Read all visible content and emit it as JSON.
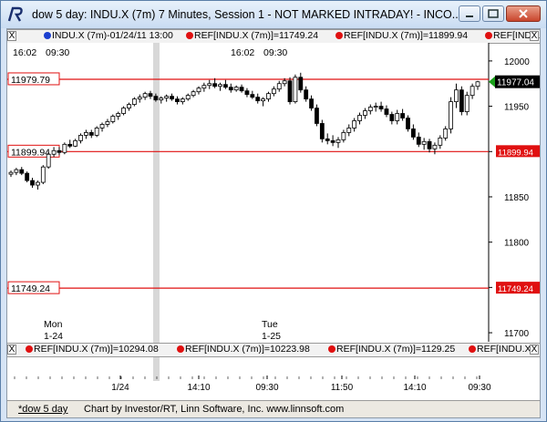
{
  "window": {
    "title": "dow 5 day: INDU.X (7m) 7 Minutes, Session 1 - NOT MARKED INTRADAY! - INCO..."
  },
  "top_legend": {
    "items": [
      {
        "text": "INDU.X (7m)-01/24/11 13:00",
        "dot": "blue"
      },
      {
        "text": "REF[INDU.X (7m)]=11749.24",
        "dot": "red"
      },
      {
        "text": "REF[INDU.X (7m)]=11899.94",
        "dot": "red"
      },
      {
        "text": "REF[INDU.X",
        "dot": "red"
      }
    ],
    "close_label": "X"
  },
  "bottom_legend": {
    "items": [
      {
        "text": "REF[INDU.X (7m)]=10294.08",
        "dot": "red"
      },
      {
        "text": "REF[INDU.X (7m)]=10223.98",
        "dot": "red"
      },
      {
        "text": "REF[INDU.X (7m)]=1129.25",
        "dot": "red"
      },
      {
        "text": "REF[INDU.X",
        "dot": "red"
      }
    ],
    "close_label": "X"
  },
  "session_labels": [
    {
      "time": "16:02",
      "open": "09:30"
    },
    {
      "time": "16:02",
      "open": "09:30"
    }
  ],
  "day_labels": [
    {
      "weekday": "Mon",
      "date": "1-24"
    },
    {
      "weekday": "Tue",
      "date": "1-25"
    }
  ],
  "time_ticks": [
    "1/24",
    "14:10",
    "09:30",
    "11:50",
    "14:10",
    "09:30"
  ],
  "status": {
    "tab": "*dow 5 day",
    "text": "Chart by Investor/RT, Linn Software, Inc. www.linnsoft.com"
  },
  "colors": {
    "up_candle": "#ffffff",
    "down_candle": "#000000",
    "ref_line": "#e01010",
    "last_price_bg": "#000000",
    "session_shade": "#d8d8d8"
  },
  "chart_data": {
    "type": "candlestick",
    "title": "dow 5 day: INDU.X (7m) 7 Minutes",
    "ylim": [
      11690,
      12020
    ],
    "y_ticks": [
      12000,
      11950,
      11900,
      11850,
      11800,
      11750,
      11700
    ],
    "reference_lines": [
      {
        "value": 11979.79,
        "label": "11979.79",
        "right_label": ""
      },
      {
        "value": 11899.94,
        "label": "11899.94",
        "right_label": "11899.94"
      },
      {
        "value": 11749.24,
        "label": "11749.24",
        "right_label": "11749.24"
      }
    ],
    "last_price": 11977.04,
    "last_price_label": "11977.04",
    "candles": [
      [
        11875,
        11879,
        11872,
        11877
      ],
      [
        11877,
        11882,
        11874,
        11880
      ],
      [
        11880,
        11883,
        11874,
        11876
      ],
      [
        11876,
        11878,
        11866,
        11868
      ],
      [
        11868,
        11871,
        11860,
        11863
      ],
      [
        11863,
        11868,
        11858,
        11866
      ],
      [
        11866,
        11885,
        11864,
        11883
      ],
      [
        11883,
        11900,
        11881,
        11897
      ],
      [
        11897,
        11905,
        11894,
        11901
      ],
      [
        11901,
        11905,
        11896,
        11899
      ],
      [
        11899,
        11910,
        11897,
        11908
      ],
      [
        11908,
        11913,
        11904,
        11906
      ],
      [
        11906,
        11914,
        11905,
        11912
      ],
      [
        11912,
        11920,
        11909,
        11918
      ],
      [
        11918,
        11924,
        11914,
        11921
      ],
      [
        11921,
        11924,
        11915,
        11918
      ],
      [
        11918,
        11928,
        11916,
        11926
      ],
      [
        11926,
        11932,
        11922,
        11930
      ],
      [
        11930,
        11936,
        11927,
        11933
      ],
      [
        11933,
        11941,
        11931,
        11939
      ],
      [
        11939,
        11944,
        11935,
        11942
      ],
      [
        11942,
        11950,
        11940,
        11948
      ],
      [
        11948,
        11954,
        11945,
        11952
      ],
      [
        11952,
        11960,
        11950,
        11958
      ],
      [
        11958,
        11963,
        11954,
        11960
      ],
      [
        11960,
        11966,
        11957,
        11964
      ],
      [
        11964,
        11967,
        11958,
        11961
      ],
      [
        11961,
        11964,
        11955,
        11957
      ],
      [
        11957,
        11961,
        11953,
        11959
      ],
      [
        11959,
        11963,
        11955,
        11961
      ],
      [
        11961,
        11964,
        11956,
        11958
      ],
      [
        11958,
        11961,
        11952,
        11955
      ],
      [
        11955,
        11960,
        11952,
        11958
      ],
      [
        11958,
        11964,
        11956,
        11962
      ],
      [
        11962,
        11968,
        11960,
        11966
      ],
      [
        11966,
        11972,
        11963,
        11970
      ],
      [
        11970,
        11976,
        11966,
        11973
      ],
      [
        11973,
        11979,
        11969,
        11975
      ],
      [
        11975,
        11981,
        11970,
        11972
      ],
      [
        11972,
        11976,
        11967,
        11974
      ],
      [
        11974,
        11979,
        11969,
        11971
      ],
      [
        11971,
        11975,
        11965,
        11968
      ],
      [
        11968,
        11973,
        11966,
        11971
      ],
      [
        11971,
        11974,
        11965,
        11967
      ],
      [
        11967,
        11970,
        11960,
        11963
      ],
      [
        11963,
        11967,
        11958,
        11960
      ],
      [
        11960,
        11964,
        11953,
        11956
      ],
      [
        11956,
        11960,
        11950,
        11958
      ],
      [
        11958,
        11966,
        11955,
        11964
      ],
      [
        11964,
        11972,
        11961,
        11969
      ],
      [
        11969,
        11978,
        11966,
        11975
      ],
      [
        11975,
        11981,
        11972,
        11978
      ],
      [
        11978,
        11982,
        11952,
        11955
      ],
      [
        11955,
        11985,
        11953,
        11982
      ],
      [
        11982,
        11987,
        11965,
        11968
      ],
      [
        11968,
        11972,
        11955,
        11958
      ],
      [
        11958,
        11962,
        11945,
        11948
      ],
      [
        11948,
        11952,
        11928,
        11931
      ],
      [
        11931,
        11935,
        11910,
        11914
      ],
      [
        11914,
        11920,
        11908,
        11912
      ],
      [
        11912,
        11918,
        11906,
        11910
      ],
      [
        11910,
        11916,
        11904,
        11913
      ],
      [
        11913,
        11924,
        11910,
        11921
      ],
      [
        11921,
        11930,
        11917,
        11926
      ],
      [
        11926,
        11937,
        11922,
        11934
      ],
      [
        11934,
        11943,
        11930,
        11940
      ],
      [
        11940,
        11948,
        11936,
        11945
      ],
      [
        11945,
        11952,
        11941,
        11949
      ],
      [
        11949,
        11954,
        11944,
        11950
      ],
      [
        11950,
        11955,
        11944,
        11947
      ],
      [
        11947,
        11951,
        11938,
        11941
      ],
      [
        11941,
        11944,
        11930,
        11934
      ],
      [
        11934,
        11946,
        11930,
        11942
      ],
      [
        11942,
        11947,
        11934,
        11937
      ],
      [
        11937,
        11940,
        11922,
        11925
      ],
      [
        11925,
        11930,
        11913,
        11916
      ],
      [
        11916,
        11921,
        11905,
        11908
      ],
      [
        11908,
        11915,
        11902,
        11911
      ],
      [
        11911,
        11914,
        11899,
        11903
      ],
      [
        11903,
        11910,
        11897,
        11907
      ],
      [
        11907,
        11918,
        11903,
        11915
      ],
      [
        11915,
        11928,
        11912,
        11925
      ],
      [
        11925,
        11960,
        11920,
        11955
      ],
      [
        11955,
        11975,
        11948,
        11968
      ],
      [
        11968,
        11972,
        11940,
        11944
      ],
      [
        11944,
        11966,
        11940,
        11962
      ],
      [
        11962,
        11975,
        11958,
        11972
      ],
      [
        11972,
        11978,
        11968,
        11977
      ]
    ]
  }
}
